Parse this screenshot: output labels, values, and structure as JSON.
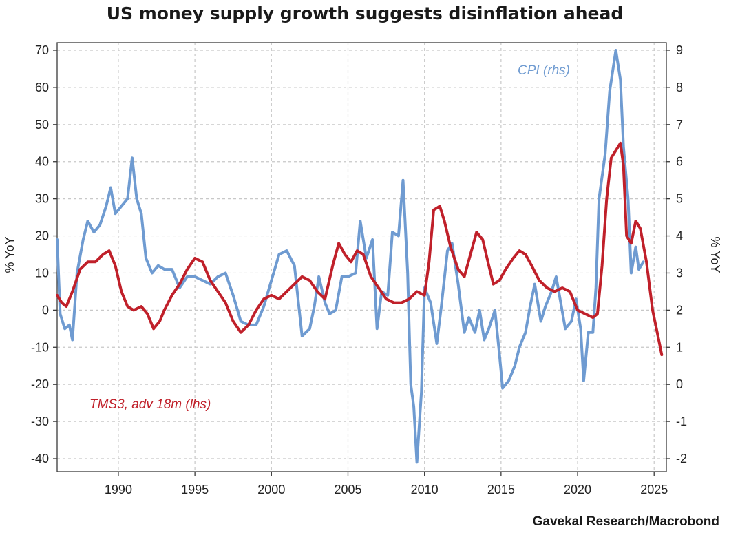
{
  "chart_data": {
    "type": "line",
    "title": "US money supply growth suggests disinflation ahead",
    "source": "Gavekal Research/Macrobond",
    "xlim": [
      1986,
      2025.8
    ],
    "x_ticks": [
      1990,
      1995,
      2000,
      2005,
      2010,
      2015,
      2020,
      2025
    ],
    "ylabel_left": "% YoY",
    "ylabel_right": "% YoY",
    "ylim_left": [
      -40,
      70
    ],
    "ylim_right": [
      -2,
      9
    ],
    "yticks_left": [
      70,
      60,
      50,
      40,
      30,
      20,
      10,
      0,
      -10,
      -20,
      -30,
      -40
    ],
    "yticks_right": [
      9,
      8,
      7,
      6,
      5,
      4,
      3,
      2,
      1,
      0,
      -1,
      -2
    ],
    "grid": true,
    "series": [
      {
        "name": "TMS3, adv 18m (lhs)",
        "axis": "left",
        "color": "#c0202a",
        "label_placement": "lower-left",
        "points": [
          [
            1986.0,
            4
          ],
          [
            1986.3,
            2
          ],
          [
            1986.6,
            1
          ],
          [
            1987.0,
            5
          ],
          [
            1987.5,
            11
          ],
          [
            1988.0,
            13
          ],
          [
            1988.5,
            13
          ],
          [
            1989.0,
            15
          ],
          [
            1989.4,
            16
          ],
          [
            1989.8,
            12
          ],
          [
            1990.2,
            5
          ],
          [
            1990.6,
            1
          ],
          [
            1991.0,
            0
          ],
          [
            1991.5,
            1
          ],
          [
            1991.9,
            -1
          ],
          [
            1992.3,
            -5
          ],
          [
            1992.7,
            -3
          ],
          [
            1993.0,
            0
          ],
          [
            1993.5,
            4
          ],
          [
            1994.0,
            7
          ],
          [
            1994.5,
            11
          ],
          [
            1995.0,
            14
          ],
          [
            1995.5,
            13
          ],
          [
            1996.0,
            8
          ],
          [
            1996.5,
            5
          ],
          [
            1997.0,
            2
          ],
          [
            1997.5,
            -3
          ],
          [
            1998.0,
            -6
          ],
          [
            1998.5,
            -4
          ],
          [
            1999.0,
            0
          ],
          [
            1999.5,
            3
          ],
          [
            2000.0,
            4
          ],
          [
            2000.5,
            3
          ],
          [
            2001.0,
            5
          ],
          [
            2001.5,
            7
          ],
          [
            2002.0,
            9
          ],
          [
            2002.5,
            8
          ],
          [
            2003.0,
            5
          ],
          [
            2003.5,
            3
          ],
          [
            2004.0,
            12
          ],
          [
            2004.4,
            18
          ],
          [
            2004.8,
            15
          ],
          [
            2005.2,
            13
          ],
          [
            2005.6,
            16
          ],
          [
            2006.0,
            15
          ],
          [
            2006.5,
            9
          ],
          [
            2007.0,
            6
          ],
          [
            2007.5,
            3
          ],
          [
            2008.0,
            2
          ],
          [
            2008.5,
            2
          ],
          [
            2009.0,
            3
          ],
          [
            2009.5,
            5
          ],
          [
            2010.0,
            4
          ],
          [
            2010.3,
            13
          ],
          [
            2010.6,
            27
          ],
          [
            2011.0,
            28
          ],
          [
            2011.3,
            24
          ],
          [
            2011.7,
            17
          ],
          [
            2012.2,
            11
          ],
          [
            2012.6,
            9
          ],
          [
            2013.0,
            15
          ],
          [
            2013.4,
            21
          ],
          [
            2013.8,
            19
          ],
          [
            2014.2,
            12
          ],
          [
            2014.5,
            7
          ],
          [
            2014.9,
            8
          ],
          [
            2015.3,
            11
          ],
          [
            2015.8,
            14
          ],
          [
            2016.2,
            16
          ],
          [
            2016.6,
            15
          ],
          [
            2017.0,
            12
          ],
          [
            2017.5,
            8
          ],
          [
            2018.0,
            6
          ],
          [
            2018.5,
            5
          ],
          [
            2019.0,
            6
          ],
          [
            2019.5,
            5
          ],
          [
            2020.0,
            0
          ],
          [
            2020.5,
            -1
          ],
          [
            2021.0,
            -2
          ],
          [
            2021.3,
            -1
          ],
          [
            2021.6,
            12
          ],
          [
            2021.9,
            30
          ],
          [
            2022.2,
            41
          ],
          [
            2022.5,
            43
          ],
          [
            2022.8,
            45
          ],
          [
            2023.0,
            39
          ],
          [
            2023.2,
            20
          ],
          [
            2023.5,
            18
          ],
          [
            2023.8,
            24
          ],
          [
            2024.1,
            22
          ],
          [
            2024.5,
            13
          ],
          [
            2024.9,
            0
          ],
          [
            2025.2,
            -6
          ],
          [
            2025.5,
            -12
          ]
        ]
      },
      {
        "name": "CPI (rhs)",
        "axis": "right",
        "color": "#6f9bd1",
        "label_placement": "top-right",
        "points": [
          [
            1986.0,
            3.9
          ],
          [
            1986.2,
            1.9
          ],
          [
            1986.5,
            1.5
          ],
          [
            1986.8,
            1.6
          ],
          [
            1987.0,
            1.2
          ],
          [
            1987.3,
            3.0
          ],
          [
            1987.7,
            3.9
          ],
          [
            1988.0,
            4.4
          ],
          [
            1988.4,
            4.1
          ],
          [
            1988.8,
            4.3
          ],
          [
            1989.2,
            4.8
          ],
          [
            1989.5,
            5.3
          ],
          [
            1989.8,
            4.6
          ],
          [
            1990.2,
            4.8
          ],
          [
            1990.6,
            5.0
          ],
          [
            1990.9,
            6.1
          ],
          [
            1991.2,
            5.0
          ],
          [
            1991.5,
            4.6
          ],
          [
            1991.8,
            3.4
          ],
          [
            1992.2,
            3.0
          ],
          [
            1992.6,
            3.2
          ],
          [
            1993.0,
            3.1
          ],
          [
            1993.5,
            3.1
          ],
          [
            1994.0,
            2.6
          ],
          [
            1994.5,
            2.9
          ],
          [
            1995.0,
            2.9
          ],
          [
            1995.5,
            2.8
          ],
          [
            1996.0,
            2.7
          ],
          [
            1996.5,
            2.9
          ],
          [
            1997.0,
            3.0
          ],
          [
            1997.5,
            2.4
          ],
          [
            1998.0,
            1.7
          ],
          [
            1998.5,
            1.6
          ],
          [
            1999.0,
            1.6
          ],
          [
            1999.5,
            2.1
          ],
          [
            2000.0,
            2.8
          ],
          [
            2000.5,
            3.5
          ],
          [
            2001.0,
            3.6
          ],
          [
            2001.5,
            3.2
          ],
          [
            2002.0,
            1.3
          ],
          [
            2002.5,
            1.5
          ],
          [
            2002.8,
            2.1
          ],
          [
            2003.1,
            2.9
          ],
          [
            2003.5,
            2.2
          ],
          [
            2003.8,
            1.9
          ],
          [
            2004.2,
            2.0
          ],
          [
            2004.6,
            2.9
          ],
          [
            2005.0,
            2.9
          ],
          [
            2005.5,
            3.0
          ],
          [
            2005.8,
            4.4
          ],
          [
            2006.2,
            3.4
          ],
          [
            2006.6,
            3.9
          ],
          [
            2006.9,
            1.5
          ],
          [
            2007.2,
            2.5
          ],
          [
            2007.6,
            2.4
          ],
          [
            2007.9,
            4.1
          ],
          [
            2008.3,
            4.0
          ],
          [
            2008.6,
            5.5
          ],
          [
            2008.9,
            3.0
          ],
          [
            2009.1,
            0.0
          ],
          [
            2009.3,
            -0.6
          ],
          [
            2009.5,
            -2.1
          ],
          [
            2009.8,
            -0.2
          ],
          [
            2010.0,
            2.6
          ],
          [
            2010.4,
            2.2
          ],
          [
            2010.8,
            1.1
          ],
          [
            2011.1,
            2.1
          ],
          [
            2011.5,
            3.6
          ],
          [
            2011.8,
            3.8
          ],
          [
            2012.2,
            2.7
          ],
          [
            2012.6,
            1.4
          ],
          [
            2012.9,
            1.8
          ],
          [
            2013.3,
            1.4
          ],
          [
            2013.6,
            2.0
          ],
          [
            2013.9,
            1.2
          ],
          [
            2014.2,
            1.5
          ],
          [
            2014.6,
            2.0
          ],
          [
            2014.9,
            0.8
          ],
          [
            2015.1,
            -0.1
          ],
          [
            2015.5,
            0.1
          ],
          [
            2015.9,
            0.5
          ],
          [
            2016.2,
            1.0
          ],
          [
            2016.6,
            1.4
          ],
          [
            2016.9,
            2.1
          ],
          [
            2017.2,
            2.7
          ],
          [
            2017.6,
            1.7
          ],
          [
            2017.9,
            2.1
          ],
          [
            2018.3,
            2.5
          ],
          [
            2018.6,
            2.9
          ],
          [
            2018.9,
            2.2
          ],
          [
            2019.2,
            1.5
          ],
          [
            2019.6,
            1.7
          ],
          [
            2019.9,
            2.3
          ],
          [
            2020.2,
            1.5
          ],
          [
            2020.4,
            0.1
          ],
          [
            2020.7,
            1.4
          ],
          [
            2021.0,
            1.4
          ],
          [
            2021.2,
            2.6
          ],
          [
            2021.4,
            5.0
          ],
          [
            2021.8,
            6.2
          ],
          [
            2022.1,
            7.9
          ],
          [
            2022.5,
            9.0
          ],
          [
            2022.8,
            8.2
          ],
          [
            2023.0,
            6.4
          ],
          [
            2023.3,
            5.0
          ],
          [
            2023.5,
            3.0
          ],
          [
            2023.8,
            3.7
          ],
          [
            2024.0,
            3.1
          ],
          [
            2024.3,
            3.3
          ]
        ]
      }
    ]
  }
}
